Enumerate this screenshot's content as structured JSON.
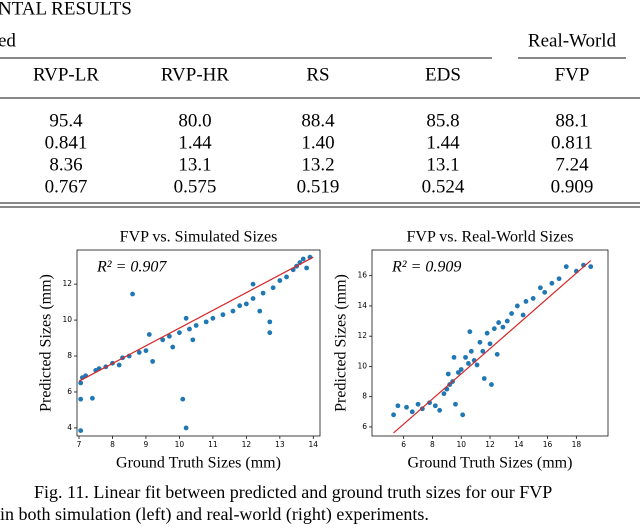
{
  "header": {
    "title": "NTAL RESULTS"
  },
  "table": {
    "groups": [
      "ed",
      "Real-World"
    ],
    "columns": [
      "RVP-LR",
      "RVP-HR",
      "RS",
      "EDS",
      "FVP"
    ],
    "rows": [
      [
        "95.4",
        "80.0",
        "88.4",
        "85.8",
        "88.1"
      ],
      [
        "0.841",
        "1.44",
        "1.40",
        "1.44",
        "0.811"
      ],
      [
        "8.36",
        "13.1",
        "13.2",
        "13.1",
        "7.24"
      ],
      [
        "0.767",
        "0.575",
        "0.519",
        "0.524",
        "0.909"
      ]
    ]
  },
  "figures": [
    {
      "type": "scatter",
      "title": "FVP vs. Simulated Sizes",
      "annotation": "R² = 0.907",
      "x_label": "Ground Truth Sizes (mm)",
      "y_label": "Predicted Sizes (mm)",
      "xlim": [
        6.94,
        14.2
      ],
      "ylim": [
        3.55,
        13.9
      ],
      "xticks": [
        7,
        8,
        9,
        10,
        11,
        12,
        13,
        14
      ],
      "yticks": [
        4,
        6,
        8,
        10,
        12
      ],
      "color": "#1f77b4",
      "fit_color": "#d62728",
      "fit": {
        "x": [
          7,
          14
        ],
        "values": [
          6.6,
          13.5
        ]
      },
      "x": [
        7.05,
        7.1,
        7.05,
        7.05,
        7.2,
        7.4,
        7.5,
        7.6,
        7.8,
        8.0,
        8.2,
        8.3,
        8.6,
        8.5,
        8.8,
        9.0,
        9.2,
        9.5,
        9.7,
        9.8,
        10.0,
        10.1,
        10.2,
        10.3,
        10.5,
        10.4,
        10.8,
        11.0,
        11.3,
        11.6,
        11.8,
        12.0,
        12.2,
        12.4,
        12.5,
        12.8,
        13.0,
        13.2,
        13.4,
        13.5,
        13.6,
        13.7,
        13.9,
        13.8,
        10.2,
        9.1,
        12.7,
        12.7,
        12.2
      ],
      "values": [
        6.5,
        6.8,
        5.6,
        3.85,
        6.9,
        5.65,
        7.2,
        7.3,
        7.4,
        7.6,
        7.5,
        7.9,
        11.45,
        8.0,
        8.2,
        8.3,
        7.7,
        8.9,
        9.1,
        8.5,
        9.3,
        5.6,
        4.0,
        9.5,
        9.7,
        8.9,
        9.9,
        10.1,
        10.3,
        10.5,
        10.8,
        10.9,
        11.2,
        10.5,
        11.5,
        11.8,
        12.2,
        12.4,
        12.8,
        13.0,
        13.2,
        13.4,
        13.5,
        12.9,
        10.1,
        9.2,
        9.9,
        9.3,
        12.0
      ]
    },
    {
      "type": "scatter",
      "title": "FVP vs. Real-World Sizes",
      "annotation": "R² = 0.909",
      "x_label": "Ground Truth Sizes (mm)",
      "y_label": "Predicted Sizes (mm)",
      "xlim": [
        3.8,
        20.2
      ],
      "ylim": [
        5.4,
        17.7
      ],
      "xticks": [
        6,
        8,
        10,
        12,
        14,
        16,
        18
      ],
      "yticks": [
        6,
        8,
        10,
        12,
        14,
        16
      ],
      "color": "#1f77b4",
      "fit_color": "#d62728",
      "fit": {
        "x": [
          5.3,
          19
        ],
        "values": [
          5.6,
          17
        ]
      },
      "x": [
        5.3,
        5.6,
        6.2,
        6.6,
        7.0,
        7.3,
        7.8,
        8.2,
        8.5,
        8.8,
        9.0,
        9.1,
        9.2,
        9.4,
        9.5,
        9.6,
        9.8,
        10.0,
        10.1,
        10.3,
        10.5,
        10.7,
        10.9,
        11.1,
        11.3,
        11.5,
        11.6,
        11.8,
        12.0,
        12.3,
        12.5,
        12.6,
        12.9,
        13.2,
        13.5,
        13.9,
        14.3,
        14.5,
        15.0,
        15.5,
        15.8,
        16.3,
        16.8,
        17.3,
        18.0,
        18.5,
        19.0,
        12.1,
        10.6
      ],
      "values": [
        6.8,
        7.4,
        7.3,
        7.0,
        7.5,
        7.2,
        7.6,
        7.4,
        7.1,
        8.2,
        8.5,
        9.5,
        8.8,
        9.0,
        10.6,
        7.5,
        9.6,
        9.8,
        6.8,
        10.6,
        10.2,
        11.0,
        10.4,
        10.1,
        11.6,
        11.0,
        9.2,
        12.2,
        11.5,
        12.5,
        10.8,
        12.9,
        12.6,
        13.0,
        13.5,
        14.0,
        13.4,
        14.3,
        14.5,
        15.2,
        14.9,
        15.5,
        15.8,
        16.6,
        16.3,
        16.7,
        16.6,
        8.8,
        12.3
      ]
    }
  ],
  "caption": {
    "lines": [
      "Fig. 11.   Linear fit between predicted and ground truth sizes for our FVP",
      "in both simulation (left) and real-world (right) experiments."
    ]
  }
}
